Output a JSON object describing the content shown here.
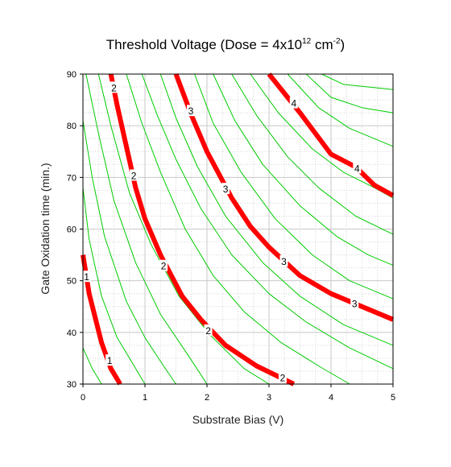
{
  "chart_data": {
    "type": "contour",
    "title": {
      "main": "Threshold Voltage (Dose = 4x10",
      "sup1": "12",
      "mid": " cm",
      "sup2": "-2",
      "end": ")"
    },
    "xlabel": "Substrate Bias (V)",
    "ylabel": "Gate Oxidation time (min.)",
    "xlim": [
      0,
      5
    ],
    "ylim": [
      30,
      90
    ],
    "xticks": [
      "0",
      "1",
      "2",
      "3",
      "4",
      "5"
    ],
    "yticks": [
      "30",
      "40",
      "50",
      "60",
      "70",
      "80",
      "90"
    ],
    "grid": true,
    "colors": {
      "major_contour": "#ff0000",
      "minor_contour": "#00cc00",
      "grid": "#c8c8c8"
    },
    "major_contours": [
      {
        "level": "1",
        "points": [
          [
            0.0,
            55.0
          ],
          [
            0.1,
            47.5
          ],
          [
            0.3,
            38.0
          ],
          [
            0.45,
            33.0
          ],
          [
            0.6,
            30.0
          ]
        ],
        "label_positions": [
          [
            0.06,
            50.7
          ],
          [
            0.43,
            34.5
          ]
        ]
      },
      {
        "level": "2",
        "points": [
          [
            0.45,
            90.0
          ],
          [
            0.55,
            84.0
          ],
          [
            0.7,
            76.0
          ],
          [
            0.85,
            68.0
          ],
          [
            1.0,
            62.0
          ],
          [
            1.25,
            55.0
          ],
          [
            1.6,
            47.0
          ],
          [
            1.9,
            42.5
          ],
          [
            2.3,
            37.5
          ],
          [
            2.8,
            33.5
          ],
          [
            3.4,
            30.0
          ]
        ],
        "label_positions": [
          [
            0.5,
            87.3
          ],
          [
            0.82,
            70.3
          ],
          [
            1.3,
            52.8
          ],
          [
            2.02,
            40.3
          ],
          [
            3.22,
            31.2
          ]
        ]
      },
      {
        "level": "3",
        "points": [
          [
            1.5,
            90.0
          ],
          [
            1.75,
            82.0
          ],
          [
            2.0,
            75.0
          ],
          [
            2.4,
            66.0
          ],
          [
            2.7,
            60.5
          ],
          [
            3.0,
            56.5
          ],
          [
            3.5,
            51.0
          ],
          [
            4.0,
            47.5
          ],
          [
            4.5,
            45.0
          ],
          [
            5.0,
            42.5
          ]
        ],
        "label_positions": [
          [
            1.74,
            82.8
          ],
          [
            2.3,
            67.7
          ],
          [
            3.24,
            53.7
          ],
          [
            4.38,
            45.5
          ]
        ]
      },
      {
        "level": "4",
        "points": [
          [
            3.0,
            90.0
          ],
          [
            3.5,
            82.5
          ],
          [
            4.0,
            74.5
          ],
          [
            4.4,
            72.0
          ],
          [
            4.7,
            68.5
          ],
          [
            5.0,
            66.5
          ]
        ],
        "label_positions": [
          [
            3.4,
            84.3
          ],
          [
            4.42,
            71.7
          ]
        ]
      }
    ],
    "minor_contours": [
      [
        [
          0.0,
          37.0
        ],
        [
          0.15,
          33.0
        ],
        [
          0.3,
          30.0
        ]
      ],
      [
        [
          0.0,
          68.0
        ],
        [
          0.1,
          58.0
        ],
        [
          0.3,
          47.0
        ],
        [
          0.55,
          39.0
        ],
        [
          0.8,
          34.0
        ],
        [
          1.0,
          30.0
        ]
      ],
      [
        [
          0.0,
          81.0
        ],
        [
          0.15,
          70.0
        ],
        [
          0.35,
          58.5
        ],
        [
          0.7,
          46.0
        ],
        [
          1.0,
          39.0
        ],
        [
          1.3,
          33.5
        ],
        [
          1.5,
          30.0
        ]
      ],
      [
        [
          0.05,
          90.0
        ],
        [
          0.25,
          78.5
        ],
        [
          0.5,
          65.5
        ],
        [
          0.85,
          53.5
        ],
        [
          1.25,
          43.5
        ],
        [
          1.7,
          35.5
        ],
        [
          2.0,
          30.0
        ]
      ],
      [
        [
          0.25,
          90.0
        ],
        [
          0.45,
          80.0
        ],
        [
          0.75,
          67.0
        ],
        [
          1.1,
          57.0
        ],
        [
          1.55,
          47.0
        ],
        [
          2.05,
          39.5
        ],
        [
          2.6,
          33.0
        ],
        [
          3.0,
          30.0
        ]
      ],
      [
        [
          0.7,
          90.0
        ],
        [
          0.95,
          80.5
        ],
        [
          1.25,
          71.0
        ],
        [
          1.65,
          60.0
        ],
        [
          2.1,
          51.0
        ],
        [
          2.6,
          44.0
        ],
        [
          3.2,
          38.0
        ],
        [
          3.8,
          33.5
        ],
        [
          4.3,
          30.0
        ]
      ],
      [
        [
          0.95,
          90.0
        ],
        [
          1.2,
          82.0
        ],
        [
          1.5,
          73.5
        ],
        [
          1.9,
          64.0
        ],
        [
          2.4,
          55.0
        ],
        [
          3.0,
          47.5
        ],
        [
          3.6,
          42.0
        ],
        [
          4.3,
          37.0
        ],
        [
          5.0,
          33.0
        ]
      ],
      [
        [
          1.25,
          90.0
        ],
        [
          1.5,
          81.5
        ],
        [
          1.85,
          72.0
        ],
        [
          2.3,
          62.5
        ],
        [
          2.9,
          53.5
        ],
        [
          3.5,
          47.0
        ],
        [
          4.2,
          41.5
        ],
        [
          5.0,
          37.5
        ]
      ],
      [
        [
          1.8,
          90.0
        ],
        [
          2.1,
          80.5
        ],
        [
          2.55,
          71.0
        ],
        [
          3.1,
          62.0
        ],
        [
          3.7,
          55.0
        ],
        [
          4.3,
          50.0
        ],
        [
          5.0,
          46.5
        ]
      ],
      [
        [
          2.1,
          90.0
        ],
        [
          2.45,
          81.0
        ],
        [
          2.9,
          72.5
        ],
        [
          3.5,
          64.5
        ],
        [
          4.1,
          58.5
        ],
        [
          4.6,
          55.0
        ],
        [
          5.0,
          53.0
        ]
      ],
      [
        [
          2.4,
          90.0
        ],
        [
          2.8,
          82.0
        ],
        [
          3.3,
          74.0
        ],
        [
          3.8,
          68.0
        ],
        [
          4.4,
          62.5
        ],
        [
          5.0,
          59.0
        ]
      ],
      [
        [
          2.7,
          90.0
        ],
        [
          3.15,
          82.5
        ],
        [
          3.7,
          75.5
        ],
        [
          4.2,
          71.0
        ],
        [
          4.7,
          68.0
        ],
        [
          5.0,
          66.0
        ]
      ],
      [
        [
          3.3,
          90.0
        ],
        [
          3.8,
          83.5
        ],
        [
          4.3,
          79.5
        ],
        [
          4.7,
          77.5
        ],
        [
          5.0,
          76.0
        ]
      ],
      [
        [
          3.6,
          90.0
        ],
        [
          4.0,
          85.5
        ],
        [
          4.5,
          83.5
        ],
        [
          5.0,
          82.5
        ]
      ],
      [
        [
          3.85,
          90.0
        ],
        [
          4.2,
          88.0
        ],
        [
          4.6,
          87.5
        ],
        [
          5.0,
          87.0
        ]
      ]
    ]
  }
}
